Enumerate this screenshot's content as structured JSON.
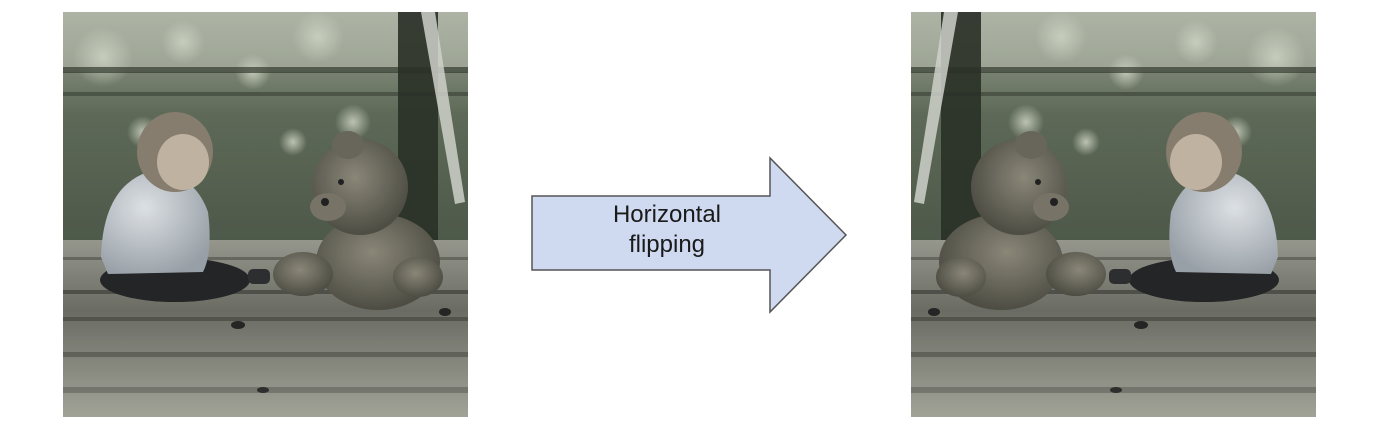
{
  "diagram": {
    "arrow_label_lines": [
      "Horizontal",
      "flipping"
    ],
    "arrow_fill": "#cfdaf1",
    "arrow_stroke": "#555555"
  },
  "images": {
    "original": {
      "subject": "child sitting beside teddy bear on wooden dock"
    },
    "flipped": {
      "subject": "same photo mirrored horizontally"
    }
  }
}
